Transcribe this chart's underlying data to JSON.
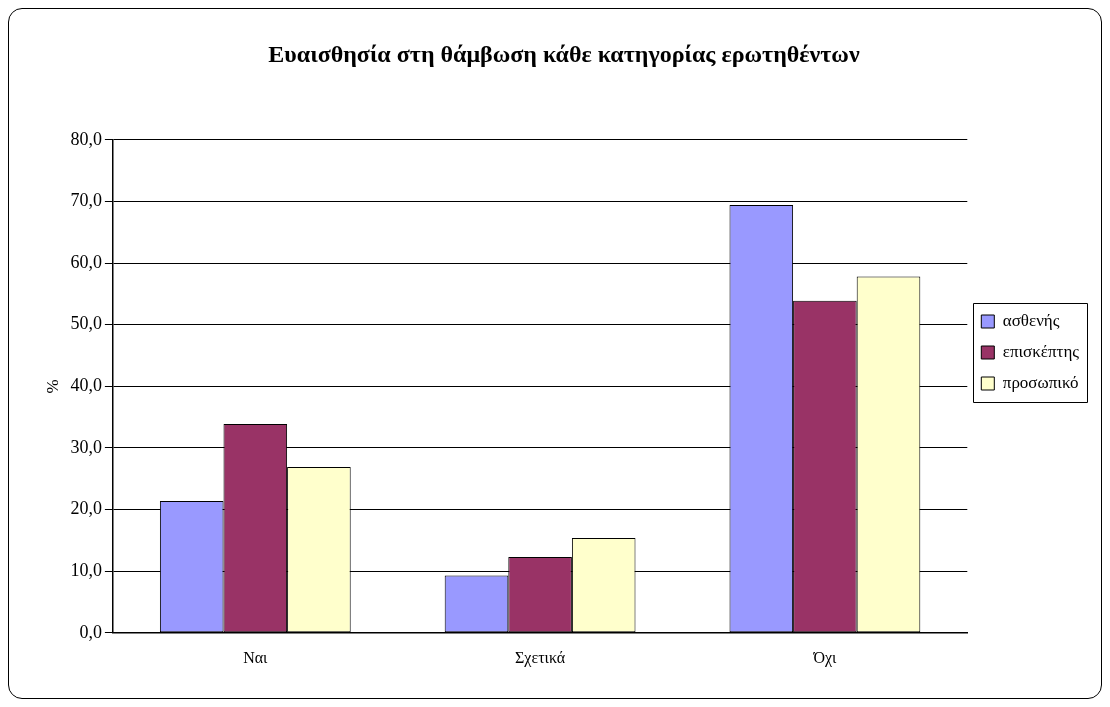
{
  "chart_data": {
    "type": "bar",
    "title": "Ευαισθησία στη θάμβωση κάθε κατηγορίας ερωτηθέντων",
    "ylabel": "%",
    "categories": [
      "Ναι",
      "Σχετικά",
      "Όχι"
    ],
    "series": [
      {
        "name": "ασθενής",
        "color": "#9999ff",
        "values": [
          21.4,
          9.3,
          69.4
        ]
      },
      {
        "name": "επισκέπτης",
        "color": "#993366",
        "values": [
          33.9,
          12.3,
          53.9
        ]
      },
      {
        "name": "προσωπικό",
        "color": "#ffffcc",
        "values": [
          26.9,
          15.4,
          57.8
        ]
      }
    ],
    "ylim": [
      0,
      80
    ],
    "yticks": [
      {
        "value": 0,
        "label": "0,0"
      },
      {
        "value": 10,
        "label": "10,0"
      },
      {
        "value": 20,
        "label": "20,0"
      },
      {
        "value": 30,
        "label": "30,0"
      },
      {
        "value": 40,
        "label": "40,0"
      },
      {
        "value": 50,
        "label": "50,0"
      },
      {
        "value": 60,
        "label": "60,0"
      },
      {
        "value": 70,
        "label": "70,0"
      },
      {
        "value": 80,
        "label": "80,0"
      }
    ],
    "grid": "y",
    "legend": "right"
  }
}
